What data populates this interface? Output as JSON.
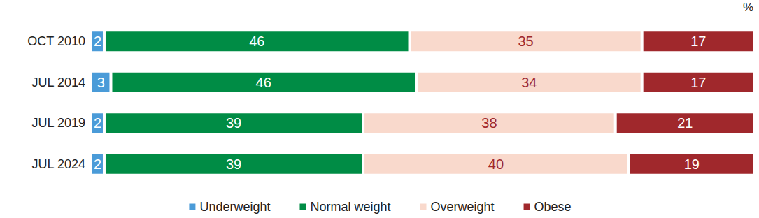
{
  "chart_data": {
    "type": "bar",
    "orientation": "horizontal",
    "stacked": true,
    "data_labels": true,
    "tick_labels": "y",
    "grid": false,
    "legend": "bottom",
    "annotations": [
      "%"
    ],
    "categories": [
      "OCT 2010",
      "JUL 2014",
      "JUL 2019",
      "JUL 2024"
    ],
    "xlim": [
      0,
      100
    ],
    "series": [
      {
        "name": "Underweight",
        "color": "#4a9bd8",
        "values": [
          2,
          3,
          2,
          2
        ]
      },
      {
        "name": "Normal weight",
        "color": "#008c45",
        "values": [
          46,
          46,
          39,
          39
        ]
      },
      {
        "name": "Overweight",
        "color": "#f9d9cc",
        "values": [
          35,
          34,
          38,
          40
        ]
      },
      {
        "name": "Obese",
        "color": "#a0282c",
        "values": [
          17,
          17,
          21,
          19
        ]
      }
    ]
  }
}
